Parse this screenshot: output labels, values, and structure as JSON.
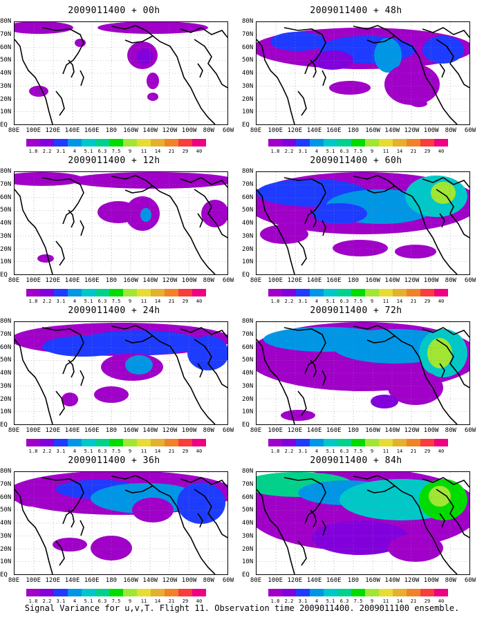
{
  "caption": "Signal Variance for u,v,T. Flight 11. Observation time 2009011400. 2009011100 ensemble.",
  "lat_labels": [
    "80N",
    "70N",
    "60N",
    "50N",
    "40N",
    "30N",
    "20N",
    "10N",
    "EQ"
  ],
  "lon_labels": [
    "80E",
    "100E",
    "120E",
    "140E",
    "160E",
    "180",
    "160W",
    "140W",
    "120W",
    "100W",
    "80W",
    "60W"
  ],
  "colorbar": {
    "colors": [
      "#a000c8",
      "#8200dc",
      "#1e3cff",
      "#0096e6",
      "#00c8c8",
      "#00d28c",
      "#00dc00",
      "#a0e632",
      "#e6dc32",
      "#e6af2d",
      "#f08228",
      "#fa3c3c",
      "#f00082"
    ],
    "labels": [
      "1.8",
      "2.2",
      "3.1",
      "4",
      "5.1",
      "6.3",
      "7.5",
      "9",
      "11",
      "14",
      "21",
      "29",
      "40"
    ]
  },
  "chart_data": [
    {
      "type": "heatmap",
      "title": "2009011400 + 00h",
      "variable": "signal variance",
      "x": "longitude 80E-60W",
      "y": "latitude EQ-80N"
    },
    {
      "type": "heatmap",
      "title": "2009011400 + 48h",
      "variable": "signal variance",
      "x": "longitude 80E-60W",
      "y": "latitude EQ-80N"
    },
    {
      "type": "heatmap",
      "title": "2009011400 + 12h",
      "variable": "signal variance",
      "x": "longitude 80E-60W",
      "y": "latitude EQ-80N"
    },
    {
      "type": "heatmap",
      "title": "2009011400 + 60h",
      "variable": "signal variance",
      "x": "longitude 80E-60W",
      "y": "latitude EQ-80N"
    },
    {
      "type": "heatmap",
      "title": "2009011400 + 24h",
      "variable": "signal variance",
      "x": "longitude 80E-60W",
      "y": "latitude EQ-80N"
    },
    {
      "type": "heatmap",
      "title": "2009011400 + 72h",
      "variable": "signal variance",
      "x": "longitude 80E-60W",
      "y": "latitude EQ-80N"
    },
    {
      "type": "heatmap",
      "title": "2009011400 + 36h",
      "variable": "signal variance",
      "x": "longitude 80E-60W",
      "y": "latitude EQ-80N"
    },
    {
      "type": "heatmap",
      "title": "2009011400 + 84h",
      "variable": "signal variance",
      "x": "longitude 80E-60W",
      "y": "latitude EQ-80N"
    }
  ]
}
